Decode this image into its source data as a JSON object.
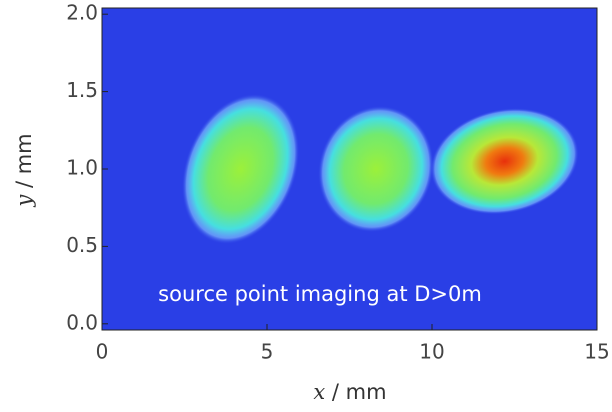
{
  "chart_data": {
    "type": "image",
    "xlabel": "x",
    "xunit": " / mm",
    "ylabel": "y",
    "yunit": " / mm",
    "annotation": "source point imaging at D>0m",
    "xlim": [
      0,
      15
    ],
    "xticks": [
      0,
      5,
      10,
      15
    ],
    "ylim": [
      -0.04,
      2.04
    ],
    "yticks": [
      {
        "value": 0,
        "label": "0.0"
      },
      {
        "value": 0.5,
        "label": "0.5"
      },
      {
        "value": 1,
        "label": "1.0"
      },
      {
        "value": 1.5,
        "label": "1.5"
      },
      {
        "value": 2,
        "label": "2.0"
      }
    ],
    "background": "#2a3fe6",
    "spots": [
      {
        "x": 4.2,
        "y": 1.0,
        "color": "#9cf03a"
      },
      {
        "x": 8.3,
        "y": 1.0,
        "color": "#9cf03a"
      },
      {
        "x": 12.2,
        "y": 1.05,
        "color": "#e8300c"
      }
    ]
  }
}
